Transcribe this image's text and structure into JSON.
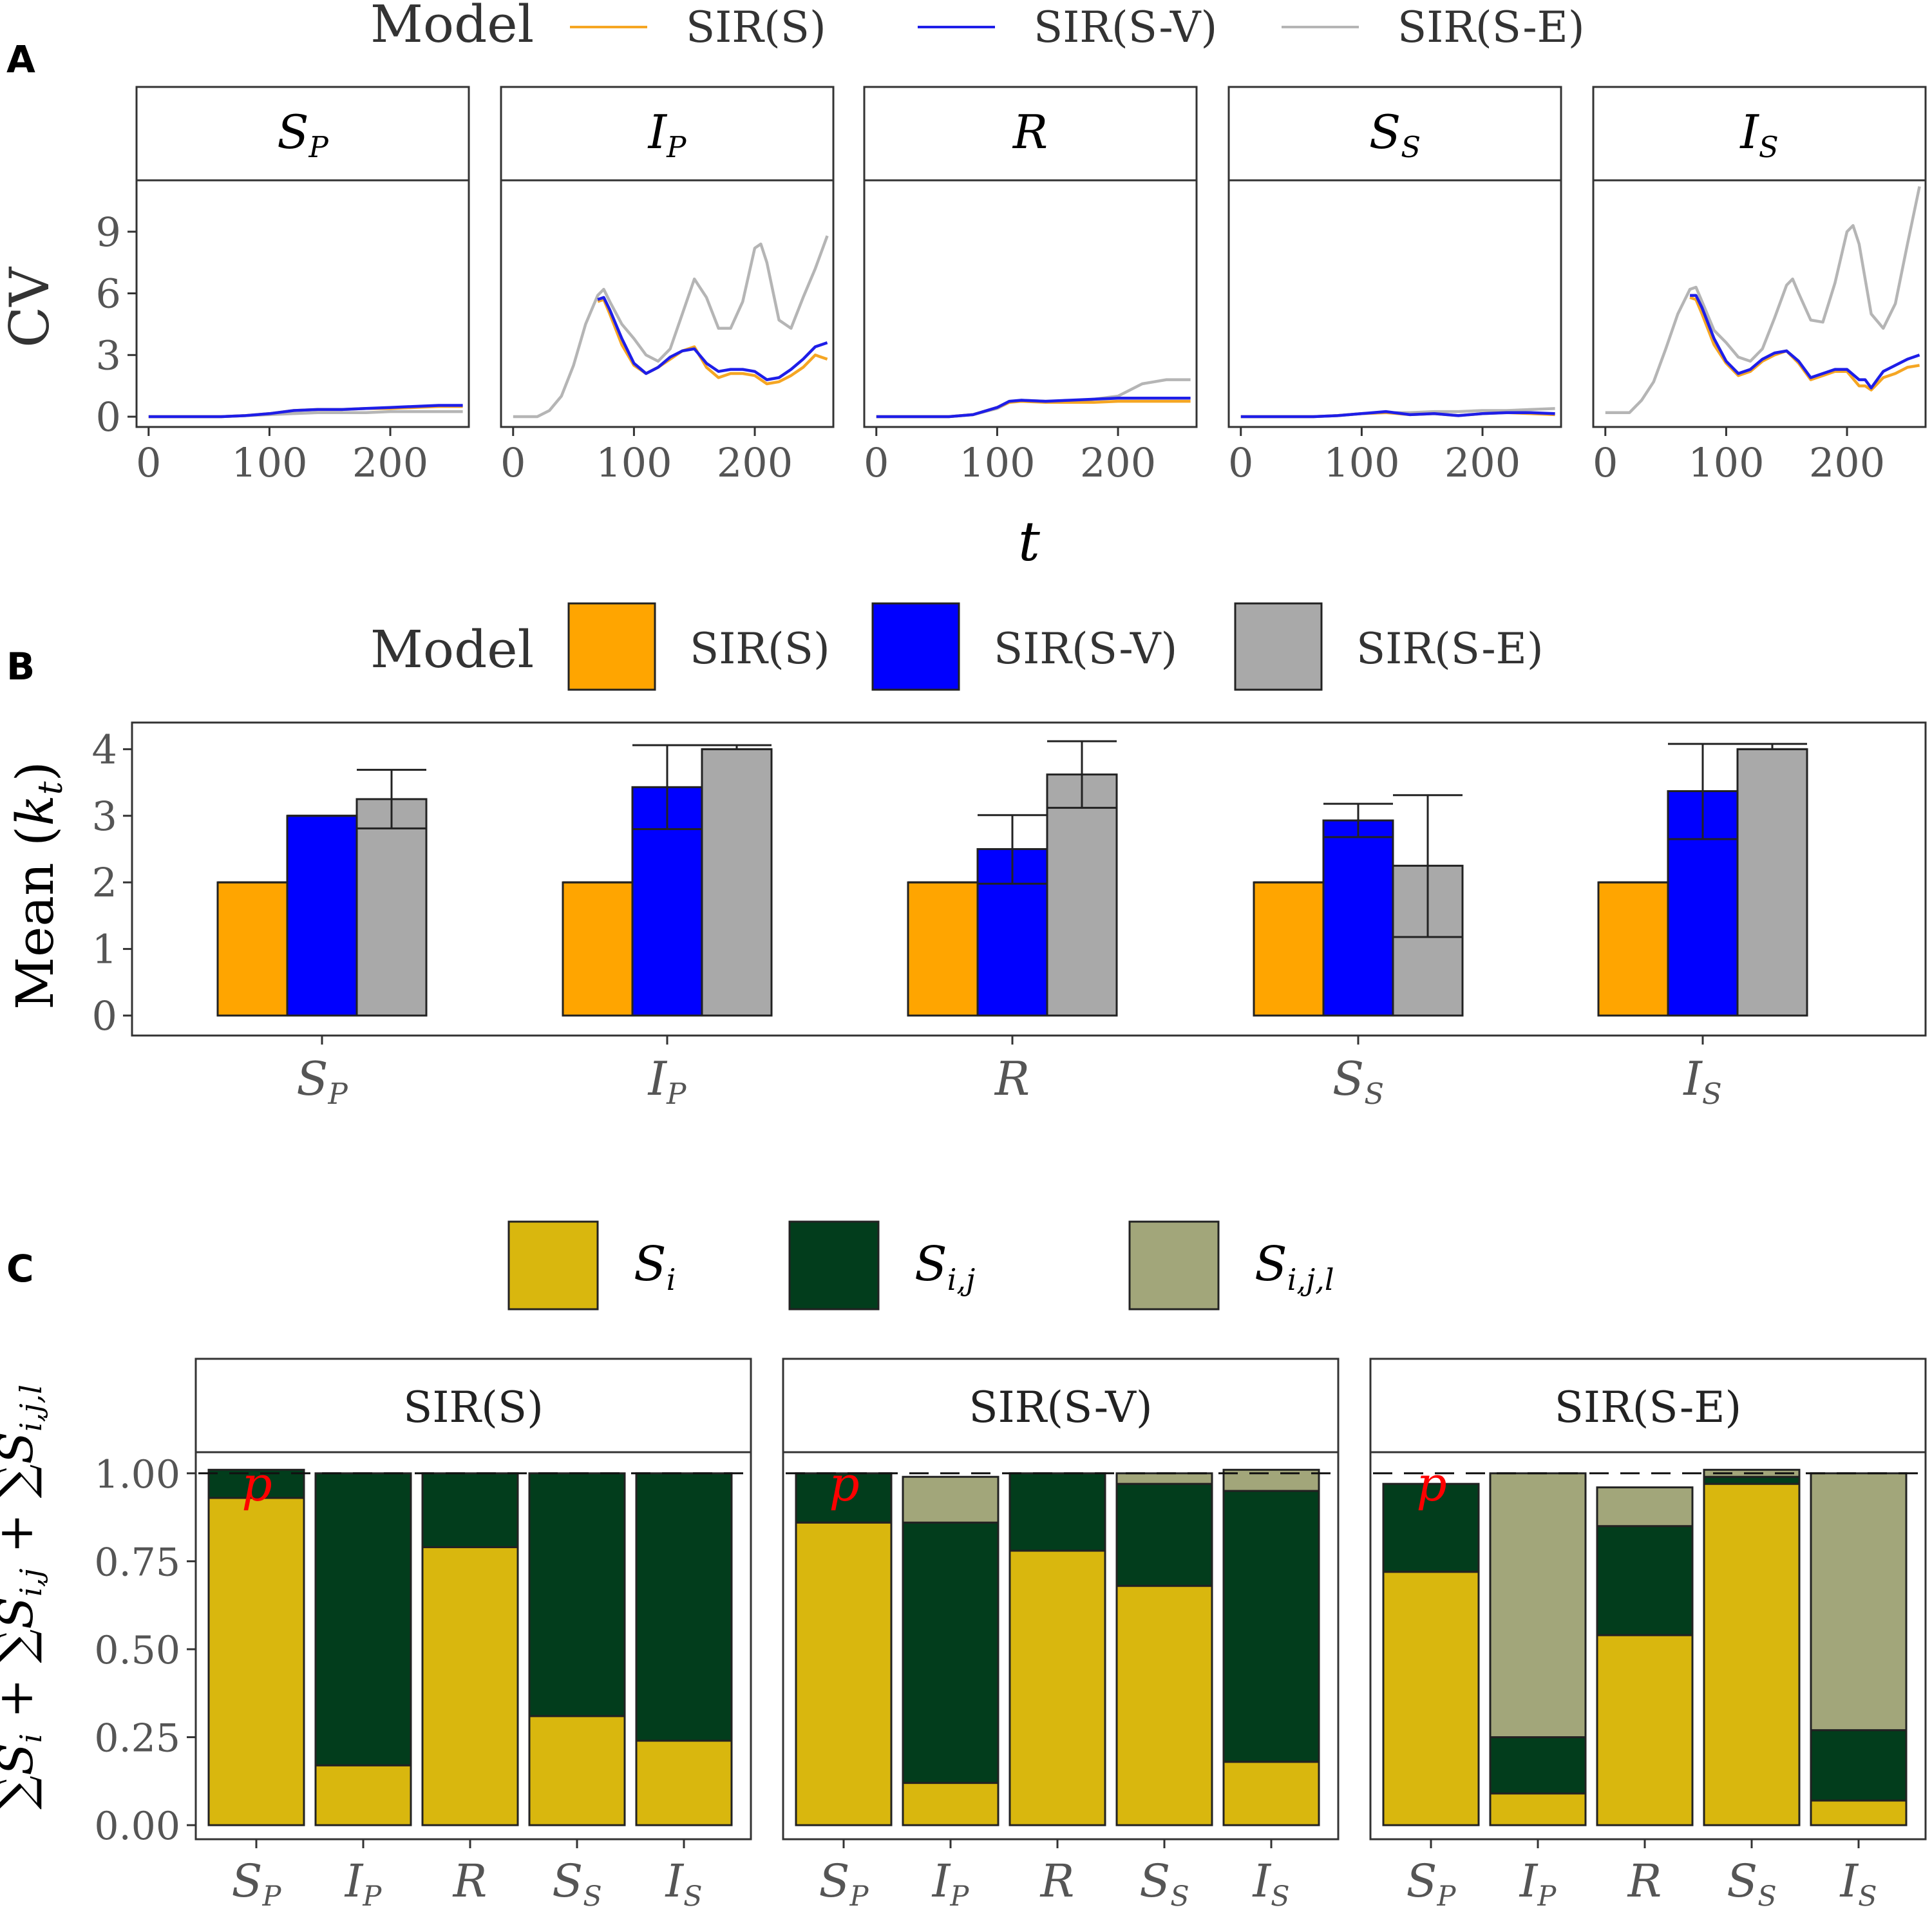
{
  "panels": {
    "A": {
      "letter": "A"
    },
    "B": {
      "letter": "B"
    },
    "C": {
      "letter": "C"
    }
  },
  "chart_data": [
    {
      "type": "line",
      "id": "A",
      "legend": {
        "title": "Model",
        "placement": "top",
        "entries": [
          {
            "label": "SIR(S)",
            "color": "#F5A623"
          },
          {
            "label": "SIR(S-V)",
            "color": "#1E1EE8"
          },
          {
            "label": "SIR(S-E)",
            "color": "#B5B5B5"
          }
        ]
      },
      "ylabel": "CV",
      "xlabel": "t",
      "xlim": [
        -10,
        265
      ],
      "ylim": [
        -0.5,
        11.5
      ],
      "xticks": [
        0,
        100,
        200
      ],
      "xticklabels": [
        "0",
        "100",
        "200"
      ],
      "yticks": [
        0,
        3,
        6,
        9
      ],
      "yticklabels": [
        "0",
        "3",
        "6",
        "9"
      ],
      "facets": [
        {
          "label": "SP",
          "series": [
            {
              "name": "SIR(S-E)",
              "x": [
                0,
                20,
                40,
                60,
                80,
                100,
                120,
                140,
                160,
                180,
                200,
                220,
                240,
                260
              ],
              "y": [
                0,
                0,
                0,
                0,
                0.05,
                0.1,
                0.15,
                0.2,
                0.2,
                0.2,
                0.25,
                0.25,
                0.25,
                0.25
              ]
            },
            {
              "name": "SIR(S)",
              "x": [
                0,
                20,
                40,
                60,
                80,
                100,
                120,
                140,
                160,
                180,
                200,
                220,
                240,
                260
              ],
              "y": [
                0,
                0,
                0,
                0,
                0.05,
                0.15,
                0.3,
                0.35,
                0.35,
                0.4,
                0.4,
                0.45,
                0.5,
                0.5
              ]
            },
            {
              "name": "SIR(S-V)",
              "x": [
                0,
                20,
                40,
                60,
                80,
                100,
                120,
                140,
                160,
                180,
                200,
                220,
                240,
                260
              ],
              "y": [
                0,
                0,
                0,
                0,
                0.05,
                0.15,
                0.3,
                0.35,
                0.35,
                0.4,
                0.45,
                0.5,
                0.55,
                0.55
              ]
            }
          ]
        },
        {
          "label": "IP",
          "series": [
            {
              "name": "SIR(S-E)",
              "x": [
                0,
                10,
                20,
                30,
                40,
                50,
                60,
                70,
                75,
                80,
                90,
                100,
                110,
                120,
                130,
                140,
                150,
                160,
                170,
                180,
                190,
                200,
                205,
                210,
                220,
                230,
                240,
                250,
                260
              ],
              "y": [
                0,
                0,
                0,
                0.3,
                1,
                2.5,
                4.5,
                5.9,
                6.2,
                5.6,
                4.5,
                3.8,
                3,
                2.7,
                3.3,
                5,
                6.7,
                5.8,
                4.3,
                4.3,
                5.6,
                8.2,
                8.4,
                7.5,
                4.7,
                4.3,
                5.8,
                7.2,
                8.8
              ]
            },
            {
              "name": "SIR(S)",
              "x": [
                70,
                75,
                80,
                90,
                100,
                110,
                120,
                130,
                140,
                150,
                160,
                170,
                180,
                190,
                200,
                210,
                220,
                230,
                240,
                250,
                260
              ],
              "y": [
                5.6,
                5.7,
                5.0,
                3.5,
                2.5,
                2.1,
                2.4,
                2.8,
                3.2,
                3.4,
                2.4,
                1.9,
                2.1,
                2.1,
                2.0,
                1.6,
                1.7,
                2.0,
                2.4,
                3.0,
                2.8
              ]
            },
            {
              "name": "SIR(S-V)",
              "x": [
                70,
                75,
                80,
                90,
                100,
                110,
                120,
                130,
                140,
                150,
                160,
                170,
                180,
                190,
                200,
                210,
                220,
                230,
                240,
                250,
                260
              ],
              "y": [
                5.7,
                5.8,
                5.2,
                3.8,
                2.6,
                2.1,
                2.4,
                2.9,
                3.2,
                3.3,
                2.6,
                2.2,
                2.3,
                2.3,
                2.2,
                1.8,
                1.9,
                2.3,
                2.8,
                3.4,
                3.6
              ]
            }
          ]
        },
        {
          "label": "R",
          "series": [
            {
              "name": "SIR(S-E)",
              "x": [
                0,
                20,
                40,
                60,
                80,
                100,
                110,
                120,
                140,
                160,
                180,
                200,
                220,
                240,
                260
              ],
              "y": [
                0,
                0,
                0,
                0,
                0.1,
                0.4,
                0.7,
                0.8,
                0.75,
                0.75,
                0.85,
                1.0,
                1.6,
                1.8,
                1.8
              ]
            },
            {
              "name": "SIR(S)",
              "x": [
                0,
                20,
                40,
                60,
                80,
                100,
                110,
                120,
                140,
                160,
                180,
                200,
                220,
                240,
                260
              ],
              "y": [
                0,
                0,
                0,
                0,
                0.1,
                0.45,
                0.7,
                0.75,
                0.7,
                0.7,
                0.7,
                0.75,
                0.75,
                0.75,
                0.75
              ]
            },
            {
              "name": "SIR(S-V)",
              "x": [
                0,
                20,
                40,
                60,
                80,
                100,
                110,
                120,
                140,
                160,
                180,
                200,
                220,
                240,
                260
              ],
              "y": [
                0,
                0,
                0,
                0,
                0.1,
                0.45,
                0.75,
                0.8,
                0.75,
                0.8,
                0.85,
                0.9,
                0.9,
                0.9,
                0.9
              ]
            }
          ]
        },
        {
          "label": "SS",
          "series": [
            {
              "name": "SIR(S-E)",
              "x": [
                0,
                20,
                40,
                60,
                80,
                100,
                120,
                140,
                160,
                180,
                200,
                220,
                240,
                260
              ],
              "y": [
                0,
                0,
                0,
                0,
                0.05,
                0.15,
                0.2,
                0.2,
                0.25,
                0.25,
                0.3,
                0.3,
                0.35,
                0.4
              ]
            },
            {
              "name": "SIR(S)",
              "x": [
                0,
                20,
                40,
                60,
                80,
                100,
                120,
                140,
                160,
                180,
                200,
                220,
                240,
                260
              ],
              "y": [
                0,
                0,
                0,
                0,
                0.05,
                0.15,
                0.2,
                0.1,
                0.15,
                0.05,
                0.15,
                0.2,
                0.15,
                0.1
              ]
            },
            {
              "name": "SIR(S-V)",
              "x": [
                0,
                20,
                40,
                60,
                80,
                100,
                120,
                140,
                160,
                180,
                200,
                220,
                240,
                260
              ],
              "y": [
                0,
                0,
                0,
                0,
                0.05,
                0.15,
                0.25,
                0.1,
                0.15,
                0.05,
                0.15,
                0.2,
                0.2,
                0.15
              ]
            }
          ]
        },
        {
          "label": "IS",
          "series": [
            {
              "name": "SIR(S-E)",
              "x": [
                0,
                20,
                30,
                40,
                50,
                60,
                70,
                75,
                80,
                90,
                100,
                110,
                120,
                130,
                140,
                150,
                155,
                160,
                170,
                180,
                190,
                200,
                205,
                210,
                220,
                230,
                240,
                250,
                260
              ],
              "y": [
                0.2,
                0.2,
                0.8,
                1.7,
                3.3,
                5.0,
                6.2,
                6.3,
                5.6,
                4.2,
                3.6,
                2.9,
                2.7,
                3.3,
                4.8,
                6.4,
                6.7,
                6.0,
                4.7,
                4.6,
                6.5,
                9.0,
                9.3,
                8.4,
                5.0,
                4.3,
                5.5,
                8.4,
                11.2
              ]
            },
            {
              "name": "SIR(S)",
              "x": [
                70,
                75,
                80,
                90,
                100,
                110,
                120,
                130,
                140,
                150,
                160,
                170,
                180,
                190,
                200,
                210,
                215,
                220,
                225,
                230,
                240,
                250,
                260
              ],
              "y": [
                5.8,
                5.7,
                5.0,
                3.5,
                2.6,
                2.0,
                2.2,
                2.7,
                3.0,
                3.2,
                2.6,
                1.8,
                2.0,
                2.2,
                2.2,
                1.5,
                1.5,
                1.3,
                1.6,
                1.9,
                2.1,
                2.4,
                2.5
              ]
            },
            {
              "name": "SIR(S-V)",
              "x": [
                70,
                75,
                80,
                90,
                100,
                110,
                120,
                130,
                140,
                150,
                160,
                170,
                180,
                190,
                200,
                210,
                215,
                220,
                225,
                230,
                240,
                250,
                260
              ],
              "y": [
                5.9,
                5.9,
                5.3,
                3.8,
                2.7,
                2.1,
                2.3,
                2.8,
                3.1,
                3.2,
                2.7,
                1.9,
                2.1,
                2.3,
                2.3,
                1.8,
                1.8,
                1.4,
                1.8,
                2.2,
                2.5,
                2.8,
                3.0
              ]
            }
          ]
        }
      ]
    },
    {
      "type": "bar",
      "id": "B",
      "legend": {
        "title": "Model",
        "placement": "top",
        "entries": [
          {
            "label": "SIR(S)",
            "color": "#FFA500"
          },
          {
            "label": "SIR(S-V)",
            "color": "#0000FF"
          },
          {
            "label": "SIR(S-E)",
            "color": "#A9A9A9"
          }
        ]
      },
      "ylabel": "Mean (k_t)",
      "ylim": [
        -0.3,
        4.4
      ],
      "yticks": [
        0,
        1,
        2,
        3,
        4
      ],
      "yticklabels": [
        "0",
        "1",
        "2",
        "3",
        "4"
      ],
      "categories": [
        "SP",
        "IP",
        "R",
        "SS",
        "IS"
      ],
      "series": [
        {
          "name": "SIR(S)",
          "values": [
            2,
            2,
            2,
            2,
            2
          ],
          "err_low": [
            2,
            2,
            2,
            2,
            2
          ],
          "err_high": [
            2,
            2,
            2,
            2,
            2
          ]
        },
        {
          "name": "SIR(S-V)",
          "values": [
            3.0,
            3.43,
            2.5,
            2.93,
            3.37
          ],
          "err_low": [
            3.0,
            2.8,
            1.98,
            2.68,
            2.65
          ],
          "err_high": [
            3.0,
            4.06,
            3.01,
            3.18,
            4.08
          ]
        },
        {
          "name": "SIR(S-E)",
          "values": [
            3.25,
            4.0,
            3.62,
            2.25,
            4.0
          ],
          "err_low": [
            2.81,
            4.0,
            3.12,
            1.18,
            4.0
          ],
          "err_high": [
            3.69,
            4.06,
            4.12,
            3.31,
            4.08
          ]
        }
      ]
    },
    {
      "type": "bar",
      "stacked": true,
      "id": "C",
      "legend": {
        "placement": "top",
        "entries": [
          {
            "label": "Si",
            "color": "#D9B70E"
          },
          {
            "label": "Si,j",
            "color": "#023D1C"
          },
          {
            "label": "Si,j,l",
            "color": "#A2A67A"
          }
        ]
      },
      "ylabel": "∑Si + ∑Si,j + ∑Si,j,l",
      "ylim": [
        -0.04,
        1.06
      ],
      "yticks": [
        0,
        0.25,
        0.5,
        0.75,
        1.0
      ],
      "yticklabels": [
        "0.00",
        "0.25",
        "0.50",
        "0.75",
        "1.00"
      ],
      "reference_line": 1.0,
      "annotation": {
        "text": "p",
        "color": "#FF0000"
      },
      "categories": [
        "SP",
        "IP",
        "R",
        "SS",
        "IS"
      ],
      "facets": [
        {
          "label": "SIR(S)",
          "series": [
            {
              "name": "Si",
              "values": [
                0.93,
                0.17,
                0.79,
                0.31,
                0.24
              ]
            },
            {
              "name": "Si,j",
              "values": [
                0.08,
                0.83,
                0.21,
                0.69,
                0.76
              ]
            },
            {
              "name": "Si,j,l",
              "values": [
                0,
                0,
                0,
                0,
                0
              ]
            }
          ]
        },
        {
          "label": "SIR(S-V)",
          "series": [
            {
              "name": "Si",
              "values": [
                0.86,
                0.12,
                0.78,
                0.68,
                0.18
              ]
            },
            {
              "name": "Si,j",
              "values": [
                0.14,
                0.74,
                0.22,
                0.29,
                0.77
              ]
            },
            {
              "name": "Si,j,l",
              "values": [
                0,
                0.13,
                0,
                0.03,
                0.06
              ]
            }
          ]
        },
        {
          "label": "SIR(S-E)",
          "series": [
            {
              "name": "Si",
              "values": [
                0.72,
                0.09,
                0.54,
                0.97,
                0.07
              ]
            },
            {
              "name": "Si,j",
              "values": [
                0.25,
                0.16,
                0.31,
                0.02,
                0.2
              ]
            },
            {
              "name": "Si,j,l",
              "values": [
                0,
                0.75,
                0.11,
                0.02,
                0.73
              ]
            }
          ]
        }
      ]
    }
  ]
}
